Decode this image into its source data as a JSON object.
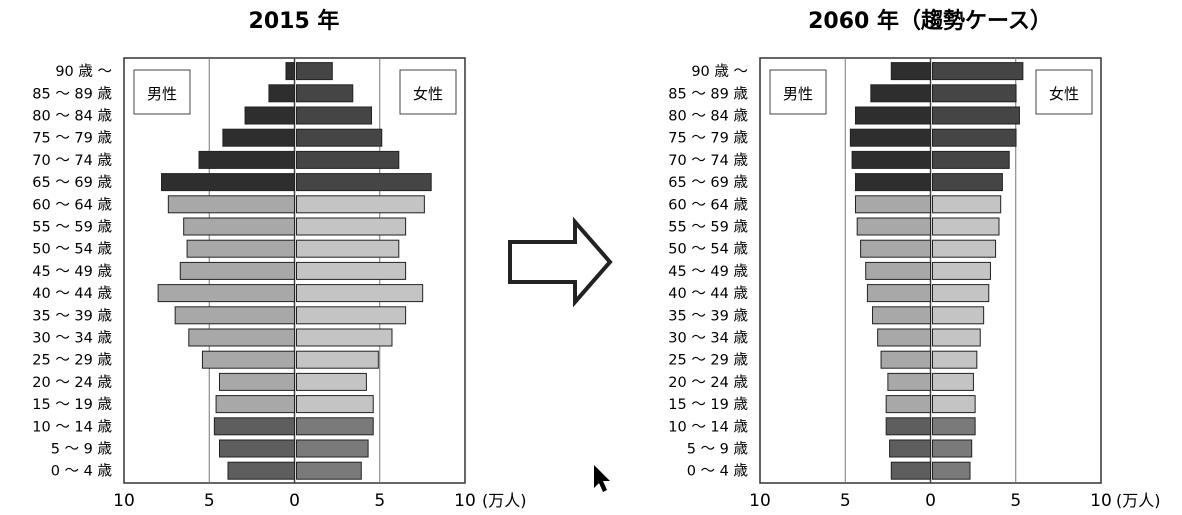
{
  "chart_data": [
    {
      "type": "bar",
      "title": "2015 年",
      "unit_label": "(万人)",
      "male_label": "男性",
      "female_label": "女性",
      "xlim": [
        -10,
        10
      ],
      "x_ticks": [
        "10",
        "5",
        "0",
        "5",
        "10"
      ],
      "grid": true,
      "categories": [
        "90 歳 ～",
        "85 ～ 89 歳",
        "80 ～ 84 歳",
        "75 ～ 79 歳",
        "70 ～ 74 歳",
        "65 ～ 69 歳",
        "60 ～ 64 歳",
        "55 ～ 59 歳",
        "50 ～ 54 歳",
        "45 ～ 49 歳",
        "40 ～ 44 歳",
        "35 ～ 39 歳",
        "30 ～ 34 歳",
        "25 ～ 29 歳",
        "20 ～ 24 歳",
        "15 ～ 19 歳",
        "10 ～ 14 歳",
        "5 ～ 9 歳",
        "0 ～ 4 歳"
      ],
      "series": [
        {
          "name": "男性",
          "values": [
            0.5,
            1.5,
            2.9,
            4.2,
            5.6,
            7.8,
            7.4,
            6.5,
            6.3,
            6.7,
            8.0,
            7.0,
            6.2,
            5.4,
            4.4,
            4.6,
            4.7,
            4.4,
            3.9
          ]
        },
        {
          "name": "女性",
          "values": [
            2.1,
            3.3,
            4.4,
            5.0,
            6.0,
            7.9,
            7.5,
            6.4,
            6.0,
            6.4,
            7.4,
            6.4,
            5.6,
            4.8,
            4.1,
            4.5,
            4.5,
            4.2,
            3.8
          ]
        }
      ]
    },
    {
      "type": "bar",
      "title": "2060 年（趨勢ケース）",
      "unit_label": "(万人)",
      "male_label": "男性",
      "female_label": "女性",
      "xlim": [
        -10,
        10
      ],
      "x_ticks": [
        "10",
        "5",
        "0",
        "5",
        "10"
      ],
      "grid": true,
      "categories": [
        "90 歳 ～",
        "85 ～ 89 歳",
        "80 ～ 84 歳",
        "75 ～ 79 歳",
        "70 ～ 74 歳",
        "65 ～ 69 歳",
        "60 ～ 64 歳",
        "55 ～ 59 歳",
        "50 ～ 54 歳",
        "45 ～ 49 歳",
        "40 ～ 44 歳",
        "35 ～ 39 歳",
        "30 ～ 34 歳",
        "25 ～ 29 歳",
        "20 ～ 24 歳",
        "15 ～ 19 歳",
        "10 ～ 14 歳",
        "5 ～ 9 歳",
        "0 ～ 4 歳"
      ],
      "series": [
        {
          "name": "男性",
          "values": [
            2.3,
            3.5,
            4.4,
            4.7,
            4.6,
            4.4,
            4.4,
            4.3,
            4.1,
            3.8,
            3.7,
            3.4,
            3.1,
            2.9,
            2.5,
            2.6,
            2.6,
            2.4,
            2.3
          ]
        },
        {
          "name": "女性",
          "values": [
            5.3,
            4.9,
            5.1,
            4.9,
            4.5,
            4.1,
            4.0,
            3.9,
            3.7,
            3.4,
            3.3,
            3.0,
            2.8,
            2.6,
            2.4,
            2.5,
            2.5,
            2.3,
            2.2
          ]
        }
      ]
    }
  ]
}
